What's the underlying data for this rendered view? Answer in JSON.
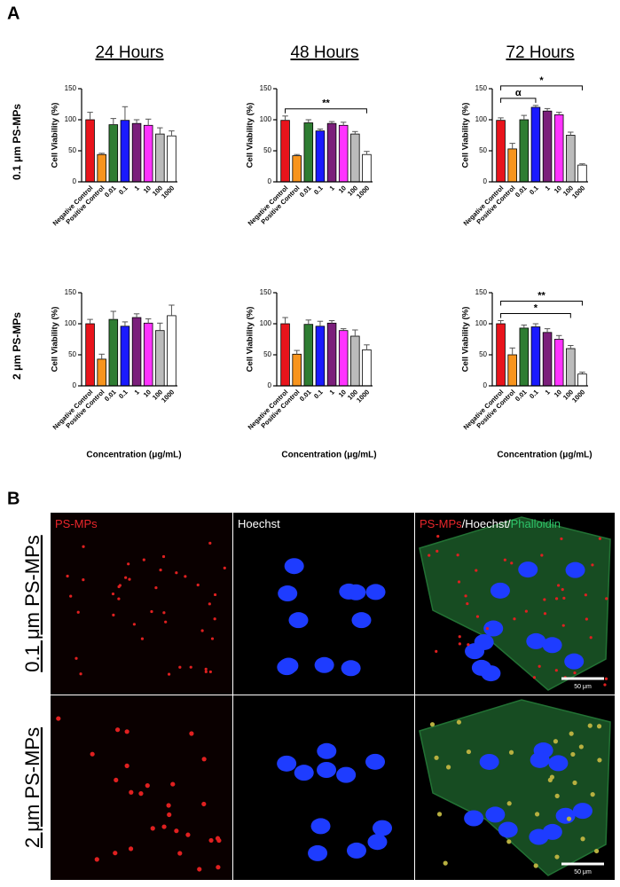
{
  "panel_a": {
    "label": "A",
    "row_labels": [
      "0.1 μm PS-MPs",
      "2 μm PS-MPs"
    ]
  },
  "chart_data": [
    {
      "type": "bar",
      "title": "24 Hours",
      "y_label": "Cell Viability (%)",
      "categories": [
        "Negative Control",
        "Positive Control",
        "0.01",
        "0.1",
        "1",
        "10",
        "100",
        "1000"
      ],
      "values": [
        100,
        44,
        92,
        99,
        94,
        91,
        77,
        74
      ],
      "errors": [
        12,
        2,
        10,
        22,
        6,
        10,
        10,
        8
      ],
      "colors": [
        "#e8141c",
        "#f7941d",
        "#2e7d32",
        "#1a1aff",
        "#7b1f7b",
        "#ff33ff",
        "#bbbbbb",
        "#ffffff"
      ],
      "ylim": [
        0,
        150
      ],
      "yticks": [
        0,
        50,
        100,
        150
      ],
      "annotations": []
    },
    {
      "type": "bar",
      "title": "48 Hours",
      "y_label": "Cell Viability (%)",
      "categories": [
        "Negative Control",
        "Positive Control",
        "0.01",
        "0.1",
        "1",
        "10",
        "100",
        "1000"
      ],
      "values": [
        99,
        42,
        95,
        82,
        94,
        91,
        77,
        44
      ],
      "errors": [
        7,
        2,
        5,
        3,
        3,
        5,
        4,
        5
      ],
      "colors": [
        "#e8141c",
        "#f7941d",
        "#2e7d32",
        "#1a1aff",
        "#7b1f7b",
        "#ff33ff",
        "#bbbbbb",
        "#ffffff"
      ],
      "ylim": [
        0,
        150
      ],
      "yticks": [
        0,
        50,
        100,
        150
      ],
      "annotations": [
        {
          "text": "**",
          "between": [
            "Negative Control",
            "1000"
          ]
        }
      ]
    },
    {
      "type": "bar",
      "title": "72 Hours",
      "y_label": "Cell Viability (%)",
      "categories": [
        "Negative Control",
        "Positive Control",
        "0.01",
        "0.1",
        "1",
        "10",
        "100",
        "1000"
      ],
      "values": [
        99,
        53,
        100,
        120,
        114,
        108,
        75,
        27
      ],
      "errors": [
        4,
        9,
        7,
        3,
        4,
        4,
        5,
        2
      ],
      "colors": [
        "#e8141c",
        "#f7941d",
        "#2e7d32",
        "#1a1aff",
        "#7b1f7b",
        "#ff33ff",
        "#bbbbbb",
        "#ffffff"
      ],
      "ylim": [
        0,
        150
      ],
      "yticks": [
        0,
        50,
        100,
        150
      ],
      "annotations": [
        {
          "text": "*",
          "between": [
            "Negative Control",
            "1000"
          ]
        },
        {
          "text": "α",
          "between": [
            "Negative Control",
            "0.1"
          ]
        }
      ]
    },
    {
      "type": "bar",
      "y_label": "Cell Viability (%)",
      "x_label": "Concentration (μg/mL)",
      "categories": [
        "Negative Control",
        "Positive Control",
        "0.01",
        "0.1",
        "1",
        "10",
        "100",
        "1000"
      ],
      "values": [
        100,
        43,
        107,
        96,
        110,
        101,
        89,
        113
      ],
      "errors": [
        7,
        8,
        13,
        7,
        6,
        7,
        12,
        17
      ],
      "colors": [
        "#e8141c",
        "#f7941d",
        "#2e7d32",
        "#1a1aff",
        "#7b1f7b",
        "#ff33ff",
        "#bbbbbb",
        "#ffffff"
      ],
      "ylim": [
        0,
        150
      ],
      "yticks": [
        0,
        50,
        100,
        150
      ],
      "annotations": []
    },
    {
      "type": "bar",
      "y_label": "Cell Viability (%)",
      "x_label": "Concentration (μg/mL)",
      "categories": [
        "Negative Control",
        "Positive Control",
        "0.01",
        "0.1",
        "1",
        "10",
        "100",
        "1000"
      ],
      "values": [
        100,
        51,
        99,
        96,
        101,
        89,
        80,
        58
      ],
      "errors": [
        10,
        6,
        7,
        8,
        4,
        3,
        10,
        8
      ],
      "colors": [
        "#e8141c",
        "#f7941d",
        "#2e7d32",
        "#1a1aff",
        "#7b1f7b",
        "#ff33ff",
        "#bbbbbb",
        "#ffffff"
      ],
      "ylim": [
        0,
        150
      ],
      "yticks": [
        0,
        50,
        100,
        150
      ],
      "annotations": []
    },
    {
      "type": "bar",
      "y_label": "Cell Viability (%)",
      "x_label": "Concentration (μg/mL)",
      "categories": [
        "Negative Control",
        "Positive Control",
        "0.01",
        "0.1",
        "1",
        "10",
        "100",
        "1000"
      ],
      "values": [
        100,
        50,
        93,
        95,
        86,
        75,
        60,
        19
      ],
      "errors": [
        5,
        11,
        5,
        5,
        6,
        6,
        5,
        3
      ],
      "colors": [
        "#e8141c",
        "#f7941d",
        "#2e7d32",
        "#1a1aff",
        "#7b1f7b",
        "#ff33ff",
        "#bbbbbb",
        "#ffffff"
      ],
      "ylim": [
        0,
        150
      ],
      "yticks": [
        0,
        50,
        100,
        150
      ],
      "annotations": [
        {
          "text": "**",
          "between": [
            "Negative Control",
            "1000"
          ]
        },
        {
          "text": "*",
          "between": [
            "Negative Control",
            "100"
          ]
        }
      ]
    }
  ],
  "panel_b": {
    "label": "B",
    "row_labels": [
      "0.1 μm PS-MPs",
      "2 μm PS-MPs"
    ],
    "column_labels": [
      [
        {
          "text": "PS-MPs",
          "color": "#e8262b"
        }
      ],
      [
        {
          "text": "Hoechst",
          "color": "#ffffff"
        }
      ],
      [
        {
          "text": "PS-MPs",
          "color": "#e8262b"
        },
        {
          "text": "/Hoechst/",
          "color": "#ffffff"
        },
        {
          "text": "Phalloidin",
          "color": "#2ec46a"
        }
      ]
    ],
    "scale_bar": "50 μm"
  }
}
